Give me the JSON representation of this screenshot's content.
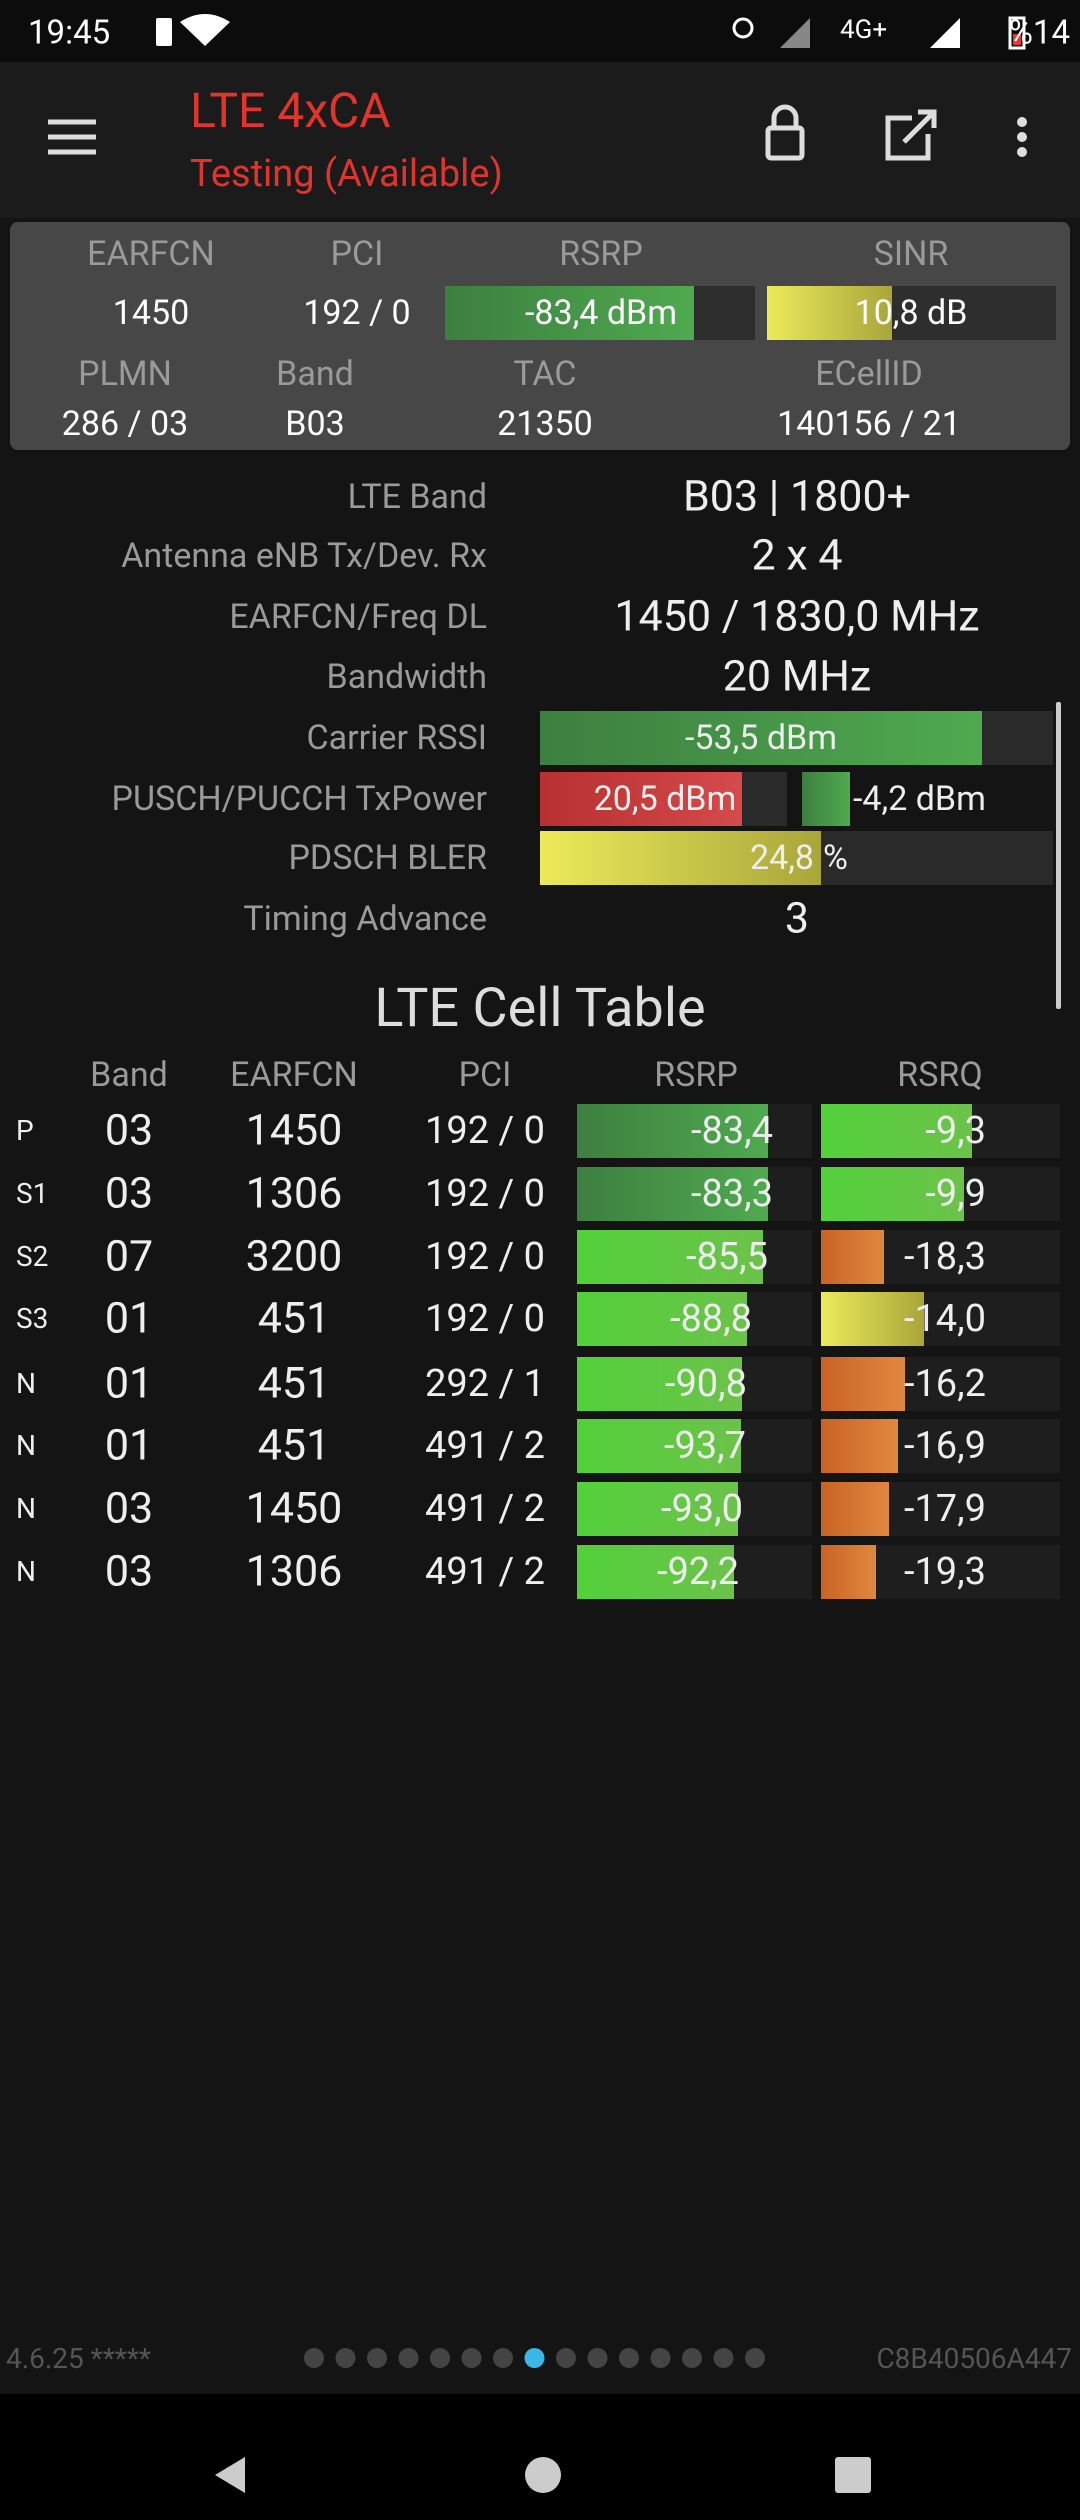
{
  "status_bar": {
    "time": "19:45",
    "network": "4G+",
    "battery": "%14"
  },
  "app_bar": {
    "title": "LTE 4xCA",
    "subtitle": "Testing (Available)"
  },
  "summary": {
    "row1": {
      "labels": [
        "EARFCN",
        "PCI",
        "RSRP",
        "SINR"
      ],
      "values": [
        "1450",
        "192 / 0",
        "-83,4 dBm",
        "10,8 dB"
      ]
    },
    "row2": {
      "labels": [
        "PLMN",
        "Band",
        "TAC",
        "ECellID"
      ],
      "values": [
        "286 / 03",
        "B03",
        "21350",
        "140156 / 21"
      ]
    }
  },
  "details": {
    "rows": [
      {
        "label": "LTE Band",
        "values": [
          "B03 | 1800+"
        ]
      },
      {
        "label": "Antenna eNB Tx/Dev. Rx",
        "values": [
          "2 x 4"
        ]
      },
      {
        "label": "EARFCN/Freq DL",
        "values": [
          "1450 / 1830,0 MHz"
        ]
      },
      {
        "label": "Bandwidth",
        "values": [
          "20 MHz"
        ]
      },
      {
        "label": "Carrier RSSI",
        "values": [
          "-53,5 dBm"
        ]
      },
      {
        "label": "PUSCH/PUCCH TxPower",
        "values": [
          "20,5 dBm",
          "-4,2 dBm"
        ]
      },
      {
        "label": "PDSCH BLER",
        "values": [
          "24,8",
          "%"
        ]
      },
      {
        "label": "Timing Advance",
        "values": [
          "3"
        ]
      }
    ]
  },
  "cell_table": {
    "title": "LTE Cell Table",
    "columns": [
      "Band",
      "EARFCN",
      "PCI",
      "RSRP",
      "RSRQ"
    ],
    "rows": [
      [
        "P",
        "03",
        "1450",
        "192 / 0",
        "-83,4",
        "-9,3"
      ],
      [
        "S1",
        "03",
        "1306",
        "192 / 0",
        "-83,3",
        "-9,9"
      ],
      [
        "S2",
        "07",
        "3200",
        "192 / 0",
        "-85,5",
        "-18,3"
      ],
      [
        "S3",
        "01",
        "451",
        "192 / 0",
        "-88,8",
        "-14,0"
      ],
      [
        "N",
        "01",
        "451",
        "292 / 1",
        "-90,8",
        "-16,2"
      ],
      [
        "N",
        "01",
        "451",
        "491 / 2",
        "-93,7",
        "-16,9"
      ],
      [
        "N",
        "03",
        "1450",
        "491 / 2",
        "-93,0",
        "-17,9"
      ],
      [
        "N",
        "03",
        "1306",
        "491 / 2",
        "-92,2",
        "-19,3"
      ]
    ]
  },
  "footer": {
    "version": "4.6.25 *****",
    "device_id": "C8B40506A447"
  }
}
